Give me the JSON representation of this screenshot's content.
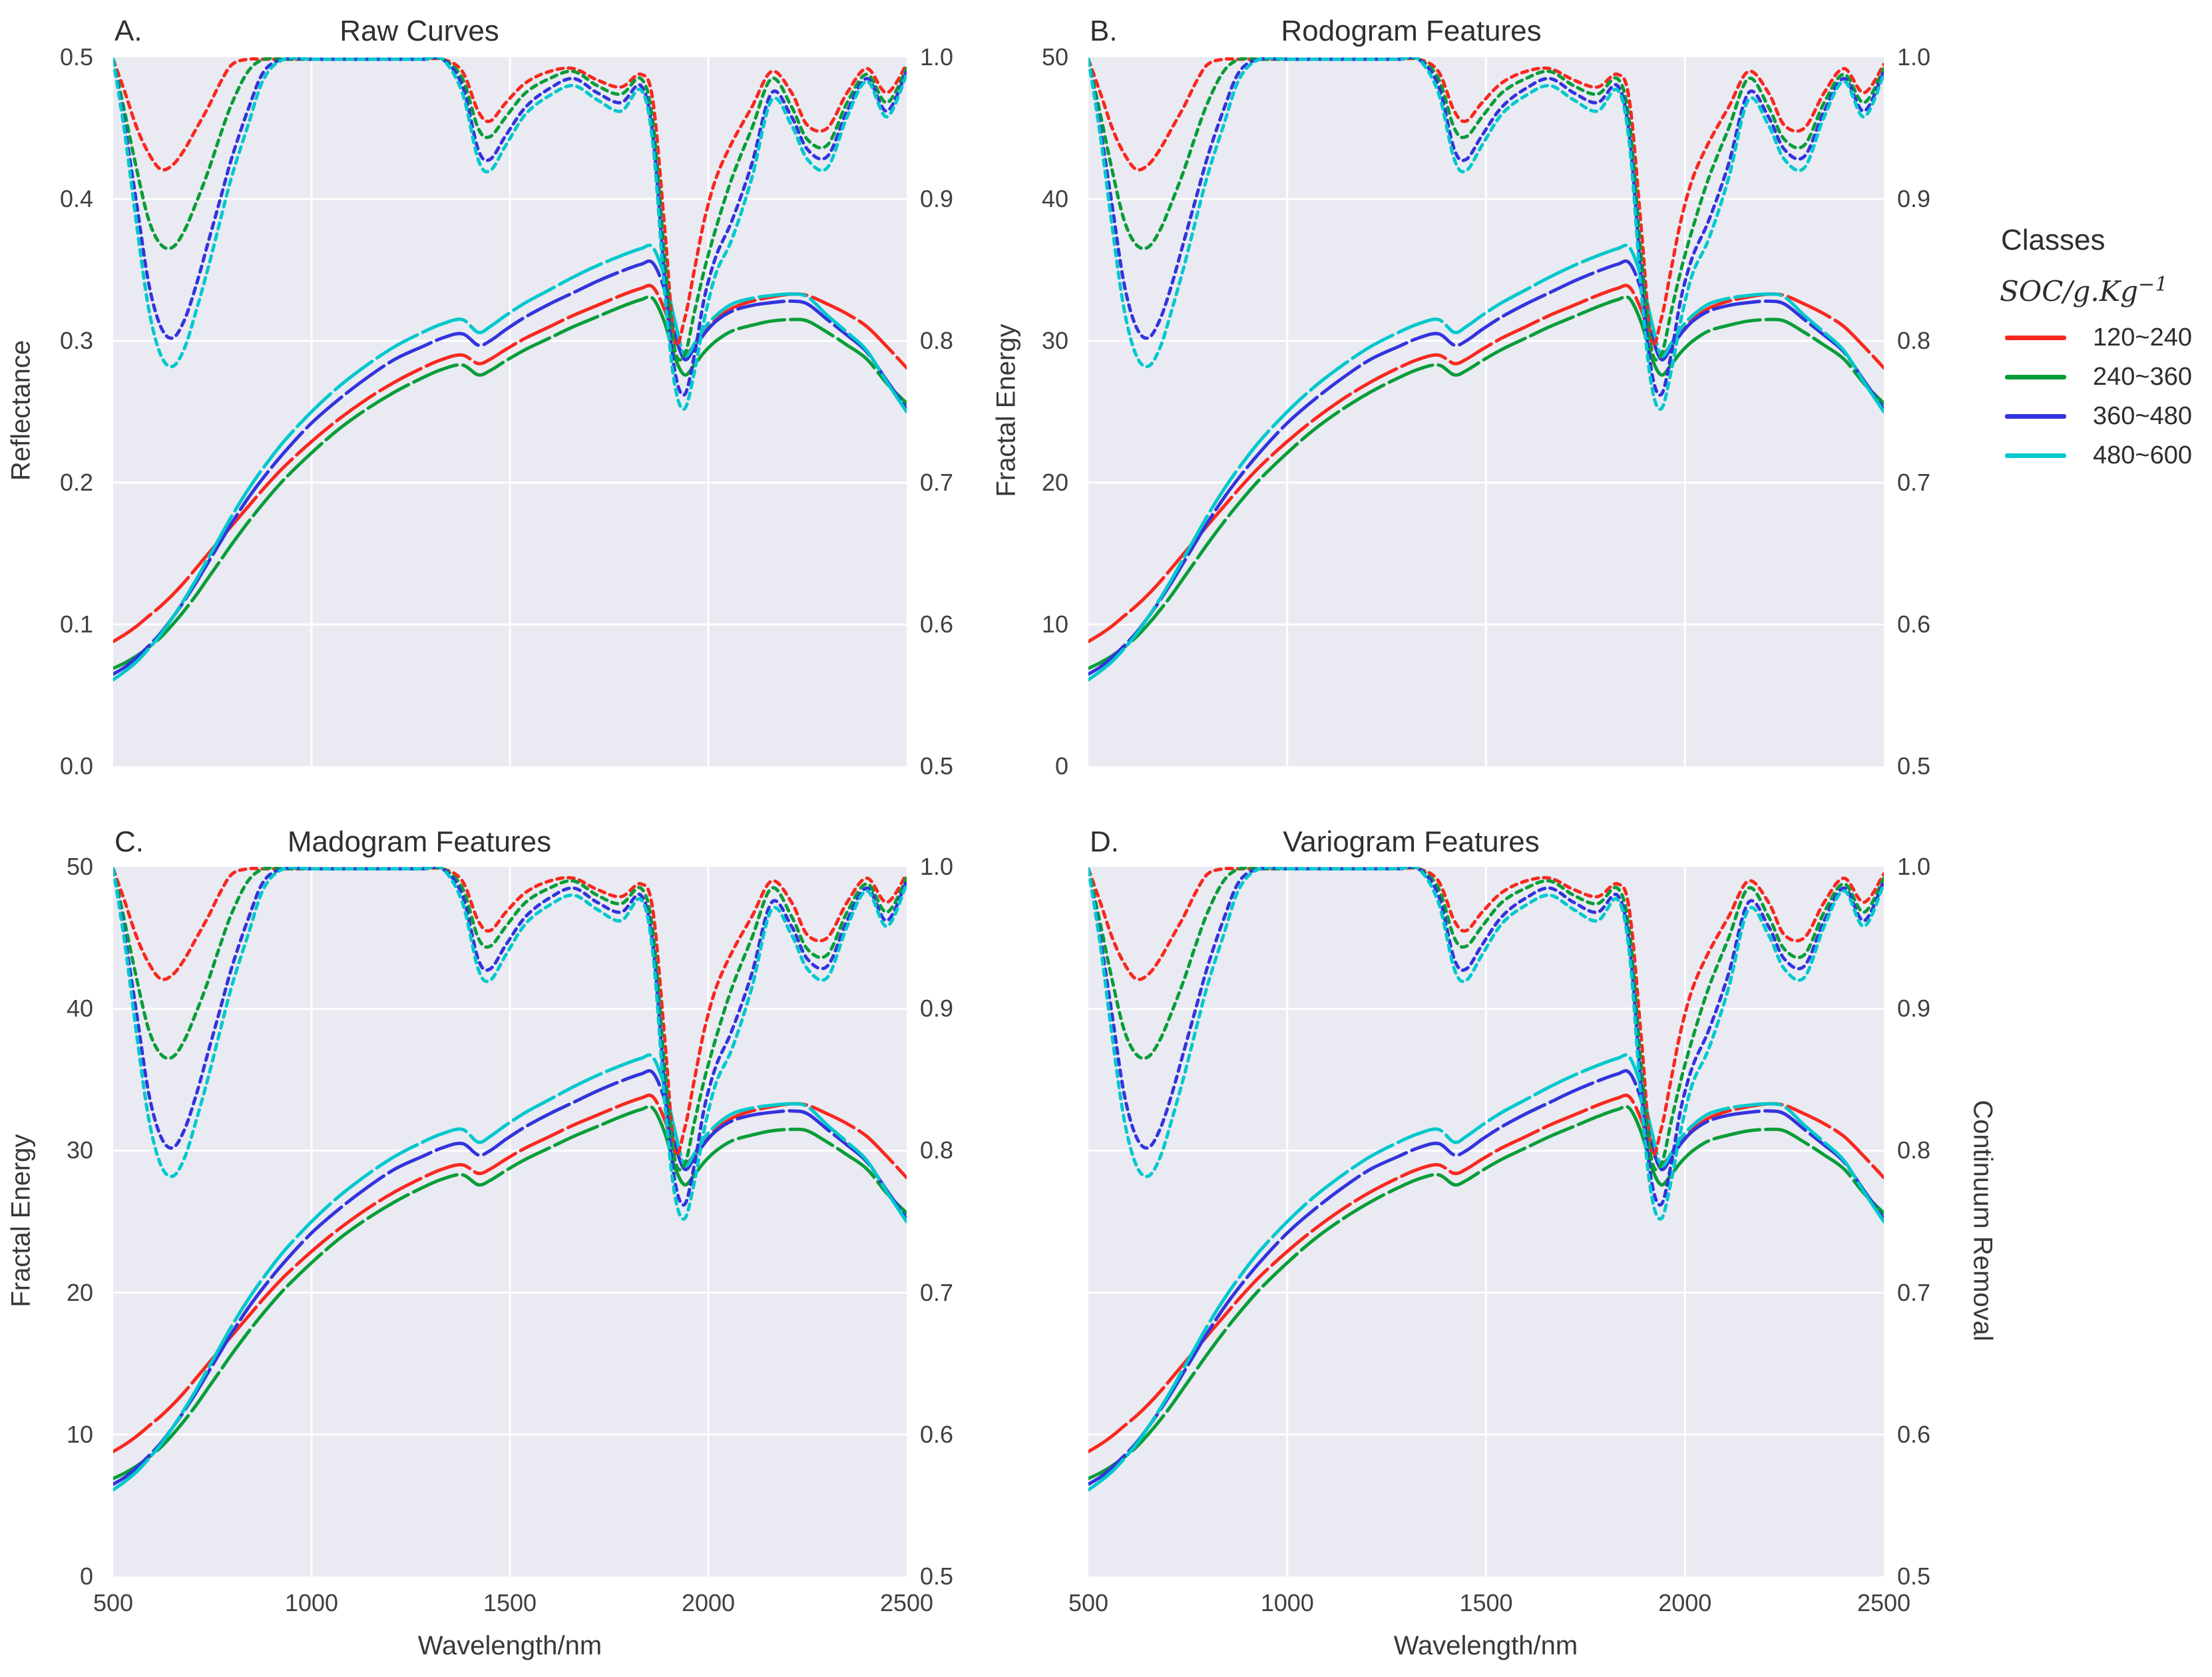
{
  "figure": {
    "plot_bg": "#e9eaf2",
    "grid_color": "#ffffff",
    "title_color": "#2f2f2f",
    "tick_color": "#3f3f3f"
  },
  "legend": {
    "title": "Classes",
    "subtitle": "SOC/g.Kg",
    "subtitle_sup": "−1",
    "items": [
      {
        "label": "120~240",
        "color": "#f8281e"
      },
      {
        "label": "240~360",
        "color": "#089d38"
      },
      {
        "label": "360~480",
        "color": "#3333dd"
      },
      {
        "label": "480~600",
        "color": "#00c8cc"
      }
    ]
  },
  "chart_data": {
    "type": "line",
    "xlabel": "Wavelength/nm",
    "x_range": [
      500,
      2500
    ],
    "x_ticks": [
      500,
      1000,
      1500,
      2000,
      2500
    ],
    "grid": true,
    "legend_position": "right",
    "panels": [
      {
        "id": "A",
        "corner_label": "A.",
        "title": "Raw Curves",
        "left_axis_label": "Reflectance",
        "right_axis_label": "",
        "left_ticks": [
          "0.5",
          "0.4",
          "0.3",
          "0.2",
          "0.1",
          "0.0"
        ],
        "right_ticks": [
          "1.0",
          "0.9",
          "0.8",
          "0.7",
          "0.6",
          "0.5"
        ],
        "left_range": [
          0,
          0.5
        ],
        "right_range": [
          0.5,
          1.0
        ],
        "solid_scale": 1,
        "show_x_ticks": false
      },
      {
        "id": "B",
        "corner_label": "B.",
        "title": "Rodogram Features",
        "left_axis_label": "Fractal Energy",
        "right_axis_label": "",
        "left_ticks": [
          "50",
          "40",
          "30",
          "20",
          "10",
          "0"
        ],
        "right_ticks": [
          "1.0",
          "0.9",
          "0.8",
          "0.7",
          "0.6",
          "0.5"
        ],
        "left_range": [
          0,
          50
        ],
        "right_range": [
          0.5,
          1.0
        ],
        "solid_scale": 100,
        "show_x_ticks": false
      },
      {
        "id": "C",
        "corner_label": "C.",
        "title": "Madogram Features",
        "left_axis_label": "Fractal Energy",
        "right_axis_label": "",
        "left_ticks": [
          "50",
          "40",
          "30",
          "20",
          "10",
          "0"
        ],
        "right_ticks": [
          "1.0",
          "0.9",
          "0.8",
          "0.7",
          "0.6",
          "0.5"
        ],
        "left_range": [
          0,
          50
        ],
        "right_range": [
          0.5,
          1.0
        ],
        "solid_scale": 100,
        "show_x_ticks": true
      },
      {
        "id": "D",
        "corner_label": "D.",
        "title": "Variogram Features",
        "left_axis_label": "",
        "right_axis_label": "Continuum Removal",
        "left_ticks": [],
        "right_ticks": [
          "1.0",
          "0.9",
          "0.8",
          "0.7",
          "0.6",
          "0.5"
        ],
        "left_range": [
          0,
          50
        ],
        "right_range": [
          0.5,
          1.0
        ],
        "solid_scale": 100,
        "show_x_ticks": true
      }
    ],
    "wavelengths": [
      500,
      530,
      560,
      590,
      620,
      650,
      680,
      710,
      740,
      770,
      800,
      840,
      880,
      930,
      1000,
      1070,
      1140,
      1210,
      1280,
      1330,
      1380,
      1420,
      1450,
      1490,
      1540,
      1600,
      1660,
      1720,
      1780,
      1830,
      1860,
      1890,
      1915,
      1940,
      1965,
      1990,
      2020,
      2060,
      2110,
      2160,
      2210,
      2250,
      2300,
      2350,
      2400,
      2450,
      2500
    ],
    "series": [
      {
        "name": "120~240",
        "color": "#f8281e",
        "reflectance": [
          0.088,
          0.093,
          0.099,
          0.106,
          0.113,
          0.121,
          0.13,
          0.14,
          0.15,
          0.16,
          0.17,
          0.183,
          0.196,
          0.211,
          0.229,
          0.245,
          0.259,
          0.271,
          0.281,
          0.287,
          0.29,
          0.284,
          0.287,
          0.294,
          0.302,
          0.31,
          0.318,
          0.325,
          0.332,
          0.337,
          0.338,
          0.322,
          0.301,
          0.291,
          0.297,
          0.306,
          0.315,
          0.323,
          0.328,
          0.331,
          0.333,
          0.332,
          0.326,
          0.319,
          0.31,
          0.296,
          0.281
        ],
        "continuum_removal": [
          1.0,
          0.975,
          0.95,
          0.932,
          0.921,
          0.924,
          0.935,
          0.95,
          0.965,
          0.982,
          0.995,
          1.0,
          1.0,
          1.0,
          1.0,
          1.0,
          1.0,
          1.0,
          1.0,
          1.0,
          0.99,
          0.962,
          0.955,
          0.968,
          0.982,
          0.99,
          0.992,
          0.984,
          0.979,
          0.988,
          0.97,
          0.88,
          0.8,
          0.815,
          0.85,
          0.885,
          0.915,
          0.94,
          0.965,
          0.99,
          0.975,
          0.952,
          0.95,
          0.975,
          0.992,
          0.975,
          0.995
        ]
      },
      {
        "name": "240~360",
        "color": "#089d38",
        "reflectance": [
          0.069,
          0.073,
          0.078,
          0.084,
          0.091,
          0.1,
          0.11,
          0.121,
          0.133,
          0.145,
          0.157,
          0.172,
          0.186,
          0.202,
          0.221,
          0.238,
          0.252,
          0.264,
          0.274,
          0.28,
          0.283,
          0.276,
          0.279,
          0.286,
          0.294,
          0.302,
          0.31,
          0.317,
          0.324,
          0.329,
          0.33,
          0.313,
          0.289,
          0.276,
          0.283,
          0.292,
          0.3,
          0.307,
          0.311,
          0.314,
          0.315,
          0.314,
          0.306,
          0.297,
          0.287,
          0.27,
          0.256
        ],
        "continuum_removal": [
          1.0,
          0.96,
          0.92,
          0.885,
          0.868,
          0.866,
          0.878,
          0.898,
          0.92,
          0.945,
          0.968,
          0.99,
          1.0,
          1.0,
          1.0,
          1.0,
          1.0,
          1.0,
          1.0,
          1.0,
          0.985,
          0.95,
          0.944,
          0.958,
          0.975,
          0.985,
          0.99,
          0.98,
          0.974,
          0.985,
          0.955,
          0.86,
          0.795,
          0.79,
          0.82,
          0.85,
          0.88,
          0.915,
          0.95,
          0.985,
          0.965,
          0.942,
          0.938,
          0.968,
          0.988,
          0.968,
          0.992
        ]
      },
      {
        "name": "360~480",
        "color": "#3333dd",
        "reflectance": [
          0.065,
          0.07,
          0.077,
          0.085,
          0.094,
          0.105,
          0.117,
          0.13,
          0.144,
          0.158,
          0.172,
          0.189,
          0.204,
          0.221,
          0.242,
          0.259,
          0.274,
          0.287,
          0.296,
          0.302,
          0.305,
          0.297,
          0.3,
          0.308,
          0.317,
          0.326,
          0.334,
          0.342,
          0.349,
          0.354,
          0.355,
          0.336,
          0.306,
          0.287,
          0.295,
          0.305,
          0.314,
          0.321,
          0.325,
          0.327,
          0.328,
          0.326,
          0.315,
          0.304,
          0.292,
          0.272,
          0.252
        ],
        "continuum_removal": [
          1.0,
          0.95,
          0.895,
          0.84,
          0.81,
          0.802,
          0.815,
          0.84,
          0.87,
          0.9,
          0.93,
          0.963,
          0.99,
          1.0,
          1.0,
          1.0,
          1.0,
          1.0,
          1.0,
          1.0,
          0.98,
          0.935,
          0.928,
          0.945,
          0.965,
          0.978,
          0.985,
          0.975,
          0.968,
          0.98,
          0.945,
          0.845,
          0.78,
          0.762,
          0.79,
          0.83,
          0.86,
          0.885,
          0.925,
          0.975,
          0.958,
          0.935,
          0.93,
          0.962,
          0.985,
          0.962,
          0.99
        ]
      },
      {
        "name": "480~600",
        "color": "#00c8cc",
        "reflectance": [
          0.061,
          0.067,
          0.074,
          0.083,
          0.093,
          0.105,
          0.118,
          0.132,
          0.147,
          0.162,
          0.177,
          0.195,
          0.211,
          0.229,
          0.25,
          0.268,
          0.283,
          0.296,
          0.306,
          0.312,
          0.315,
          0.306,
          0.31,
          0.318,
          0.327,
          0.336,
          0.345,
          0.353,
          0.36,
          0.365,
          0.366,
          0.345,
          0.315,
          0.29,
          0.298,
          0.309,
          0.318,
          0.326,
          0.33,
          0.332,
          0.333,
          0.331,
          0.318,
          0.306,
          0.293,
          0.271,
          0.25
        ],
        "continuum_removal": [
          1.0,
          0.945,
          0.88,
          0.822,
          0.79,
          0.782,
          0.795,
          0.822,
          0.852,
          0.885,
          0.917,
          0.952,
          0.985,
          1.0,
          1.0,
          1.0,
          1.0,
          1.0,
          1.0,
          1.0,
          0.975,
          0.928,
          0.92,
          0.938,
          0.96,
          0.973,
          0.98,
          0.97,
          0.962,
          0.977,
          0.94,
          0.835,
          0.77,
          0.752,
          0.778,
          0.815,
          0.848,
          0.872,
          0.915,
          0.97,
          0.952,
          0.928,
          0.922,
          0.958,
          0.983,
          0.958,
          0.988
        ]
      }
    ]
  }
}
